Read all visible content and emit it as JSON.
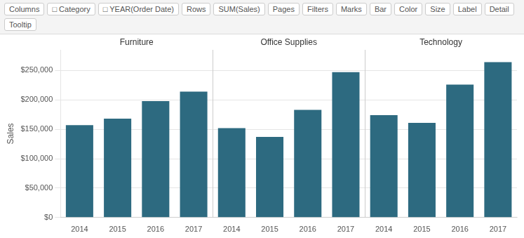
{
  "chart_data": {
    "type": "bar",
    "categories": [
      "2014",
      "2015",
      "2016",
      "2017",
      "2014",
      "2015",
      "2016",
      "2017",
      "2014",
      "2015",
      "2016",
      "2017"
    ],
    "series": [
      {
        "name": "Furniture",
        "color": "#2d6a80",
        "values": [
          157000,
          168000,
          198000,
          214000,
          null,
          null,
          null,
          null,
          null,
          null,
          null,
          null
        ]
      },
      {
        "name": "Office Supplies",
        "color": "#2d6a80",
        "values": [
          null,
          null,
          null,
          null,
          152000,
          137000,
          183000,
          247000,
          null,
          null,
          null,
          null
        ]
      },
      {
        "name": "Technology",
        "color": "#2d6a80",
        "values": [
          null,
          null,
          null,
          null,
          null,
          null,
          null,
          null,
          174000,
          161000,
          226000,
          264000
        ]
      }
    ],
    "ylabel": "Sales",
    "ylim": [
      0,
      285000
    ],
    "yticks": [
      {
        "value": 0,
        "label": "$0"
      },
      {
        "value": 50000,
        "label": "$50,000"
      },
      {
        "value": 100000,
        "label": "$100,000"
      },
      {
        "value": 150000,
        "label": "$150,000"
      },
      {
        "value": 200000,
        "label": "$200,000"
      },
      {
        "value": 250000,
        "label": "$250,000"
      }
    ],
    "grid": true,
    "annotations": [
      "Columns",
      "□ Category",
      "□ YEAR(Order Date)",
      "Rows",
      "SUM(Sales)",
      "Pages",
      "Filters",
      "Marks",
      "Bar",
      "Color",
      "Size",
      "Label",
      "Detail",
      "Tooltip"
    ]
  }
}
